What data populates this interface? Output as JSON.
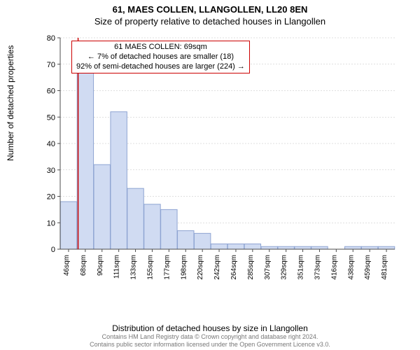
{
  "header": {
    "address": "61, MAES COLLEN, LLANGOLLEN, LL20 8EN",
    "subtitle": "Size of property relative to detached houses in Llangollen"
  },
  "chart": {
    "type": "histogram",
    "y_axis_label": "Number of detached properties",
    "x_axis_label": "Distribution of detached houses by size in Llangollen",
    "ylim": [
      0,
      80
    ],
    "ytick_step": 10,
    "yticks": [
      0,
      10,
      20,
      30,
      40,
      50,
      60,
      70,
      80
    ],
    "x_labels": [
      "46sqm",
      "68sqm",
      "90sqm",
      "111sqm",
      "133sqm",
      "155sqm",
      "177sqm",
      "198sqm",
      "220sqm",
      "242sqm",
      "264sqm",
      "285sqm",
      "307sqm",
      "329sqm",
      "351sqm",
      "373sqm",
      "416sqm",
      "438sqm",
      "459sqm",
      "481sqm"
    ],
    "x_label_fontsize": 10,
    "bar_values": [
      18,
      67,
      32,
      52,
      23,
      17,
      15,
      7,
      6,
      2,
      2,
      2,
      1,
      1,
      1,
      1,
      0,
      1,
      1,
      1
    ],
    "bar_fill": "#d0dbf2",
    "bar_stroke": "#8ea4d2",
    "grid_color": "#bfbfbf",
    "axis_color": "#4d4d4d",
    "background_color": "#ffffff",
    "marker_line_x_index": 1,
    "marker_line_color": "#cc0000",
    "annotation": {
      "line1": "61 MAES COLLEN: 69sqm",
      "line2": "← 7% of detached houses are smaller (18)",
      "line3": "92% of semi-detached houses are larger (224) →",
      "border_color": "#cc0000",
      "fontsize": 11
    }
  },
  "footer": {
    "line1": "Contains HM Land Registry data © Crown copyright and database right 2024.",
    "line2": "Contains public sector information licensed under the Open Government Licence v3.0."
  }
}
